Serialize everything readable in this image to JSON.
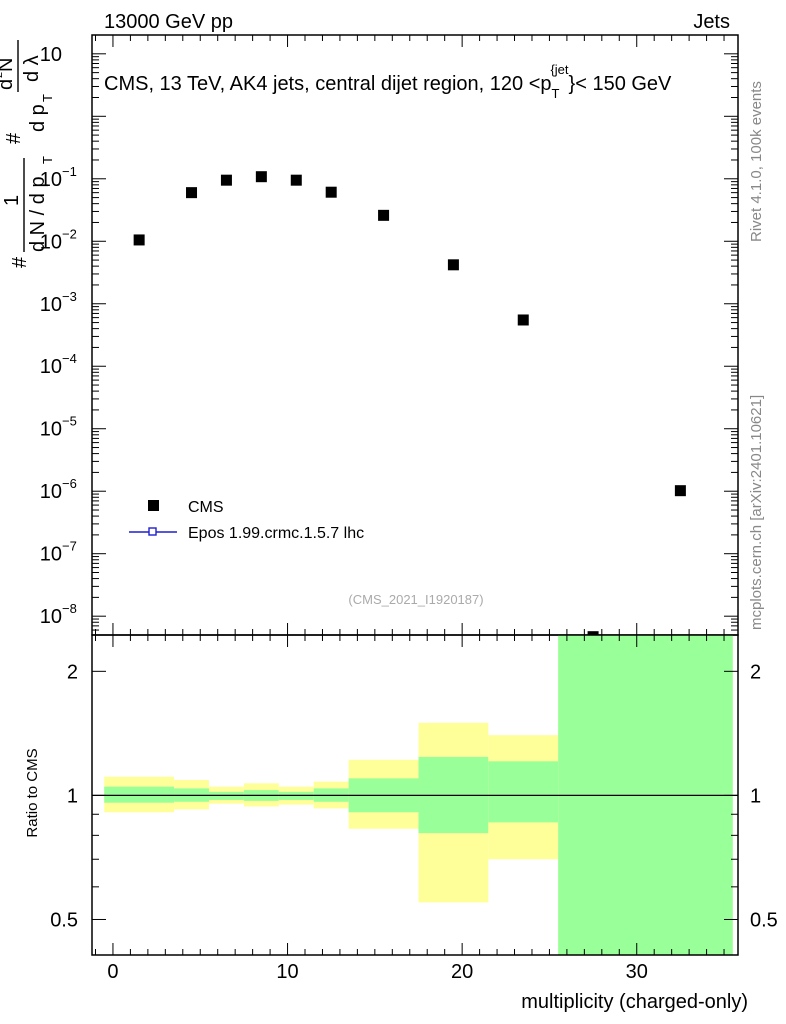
{
  "header": {
    "left": "13000 GeV pp",
    "right": "Jets"
  },
  "side_labels": {
    "rivet": "Rivet 4.1.0,  100k events",
    "mcplots": "mcplots.cern.ch [arXiv:2401.10621]"
  },
  "chart_data": [
    {
      "type": "scatter",
      "panel": "main",
      "title": "CMS, 13 TeV, AK4 jets, central dijet region, 120 <p_T^{jet}< 150 GeV",
      "title_parts": {
        "pre": "CMS, 13 TeV, AK4 jets, central dijet region, 120 <p",
        "sub": "T",
        "sup": "{jet",
        "post": "}< 150 GeV"
      },
      "ylabel_lines": [
        "#",
        "1",
        "d N / d p",
        "T",
        "#",
        "d p",
        "T",
        "d",
        "2",
        "N",
        "d λ"
      ],
      "yscale": "log",
      "ylim": [
        5e-09,
        20
      ],
      "xlim": [
        -1.2,
        35.8
      ],
      "y_ticks": [
        {
          "value": 1e-08,
          "base": "10",
          "exp": "−8"
        },
        {
          "value": 1e-07,
          "base": "10",
          "exp": "−7"
        },
        {
          "value": 1e-06,
          "base": "10",
          "exp": "−6"
        },
        {
          "value": 1e-05,
          "base": "10",
          "exp": "−5"
        },
        {
          "value": 0.0001,
          "base": "10",
          "exp": "−4"
        },
        {
          "value": 0.001,
          "base": "10",
          "exp": "−3"
        },
        {
          "value": 0.01,
          "base": "10",
          "exp": "−2"
        },
        {
          "value": 0.1,
          "base": "10",
          "exp": "−1"
        },
        {
          "value": 10,
          "base": "10",
          "exp": ""
        }
      ],
      "series": [
        {
          "name": "CMS",
          "marker": "square",
          "color": "#000000",
          "points": [
            {
              "x": 1.5,
              "y": 0.0105
            },
            {
              "x": 4.5,
              "y": 0.06
            },
            {
              "x": 6.5,
              "y": 0.095
            },
            {
              "x": 8.5,
              "y": 0.108
            },
            {
              "x": 10.5,
              "y": 0.095
            },
            {
              "x": 12.5,
              "y": 0.061
            },
            {
              "x": 15.5,
              "y": 0.026
            },
            {
              "x": 19.5,
              "y": 0.0042
            },
            {
              "x": 23.5,
              "y": 0.00055
            },
            {
              "x": 27.5,
              "y": 4.7e-09
            },
            {
              "x": 32.5,
              "y": 1.02e-06
            }
          ]
        },
        {
          "name": "Epos 1.99.crmc.1.5.7 lhc",
          "marker": "open-square-line",
          "color": "#1f1fd0",
          "points": []
        }
      ],
      "legend": [
        "CMS",
        "Epos 1.99.crmc.1.5.7 lhc"
      ],
      "legend_position": "lower-left",
      "annotation": "(CMS_2021_I1920187)"
    },
    {
      "type": "area",
      "panel": "ratio",
      "ylabel": "Ratio to CMS",
      "xlabel": "multiplicity (charged-only)",
      "yscale": "log",
      "ylim": [
        0.41,
        2.45
      ],
      "xlim": [
        -1.2,
        35.8
      ],
      "x_ticks": [
        {
          "value": 0,
          "label": "0"
        },
        {
          "value": 10,
          "label": "10"
        },
        {
          "value": 20,
          "label": "20"
        },
        {
          "value": 30,
          "label": "30"
        }
      ],
      "y_ticks": [
        {
          "value": 0.5,
          "label": "0.5"
        },
        {
          "value": 1,
          "label": "1"
        },
        {
          "value": 2,
          "label": "2"
        }
      ],
      "reference_line": 1,
      "bands": [
        {
          "x0": -0.5,
          "x1": 3.5,
          "inner": [
            0.96,
            1.05
          ],
          "outer": [
            0.91,
            1.11
          ]
        },
        {
          "x0": 3.5,
          "x1": 5.5,
          "inner": [
            0.965,
            1.04
          ],
          "outer": [
            0.925,
            1.09
          ]
        },
        {
          "x0": 5.5,
          "x1": 7.5,
          "inner": [
            0.975,
            1.02
          ],
          "outer": [
            0.955,
            1.05
          ]
        },
        {
          "x0": 7.5,
          "x1": 9.5,
          "inner": [
            0.97,
            1.03
          ],
          "outer": [
            0.94,
            1.07
          ]
        },
        {
          "x0": 9.5,
          "x1": 11.5,
          "inner": [
            0.975,
            1.02
          ],
          "outer": [
            0.95,
            1.05
          ]
        },
        {
          "x0": 11.5,
          "x1": 13.5,
          "inner": [
            0.965,
            1.04
          ],
          "outer": [
            0.93,
            1.08
          ]
        },
        {
          "x0": 13.5,
          "x1": 17.5,
          "inner": [
            0.91,
            1.1
          ],
          "outer": [
            0.83,
            1.22
          ]
        },
        {
          "x0": 17.5,
          "x1": 21.5,
          "inner": [
            0.81,
            1.24
          ],
          "outer": [
            0.55,
            1.5
          ]
        },
        {
          "x0": 21.5,
          "x1": 25.5,
          "inner": [
            0.86,
            1.21
          ],
          "outer": [
            0.7,
            1.4
          ]
        },
        {
          "x0": 25.5,
          "x1": 35.5,
          "inner": [
            0.41,
            2.45
          ],
          "outer": [
            0.41,
            2.45
          ]
        }
      ],
      "colors": {
        "inner": "#99ff99",
        "outer": "#ffff99"
      }
    }
  ]
}
